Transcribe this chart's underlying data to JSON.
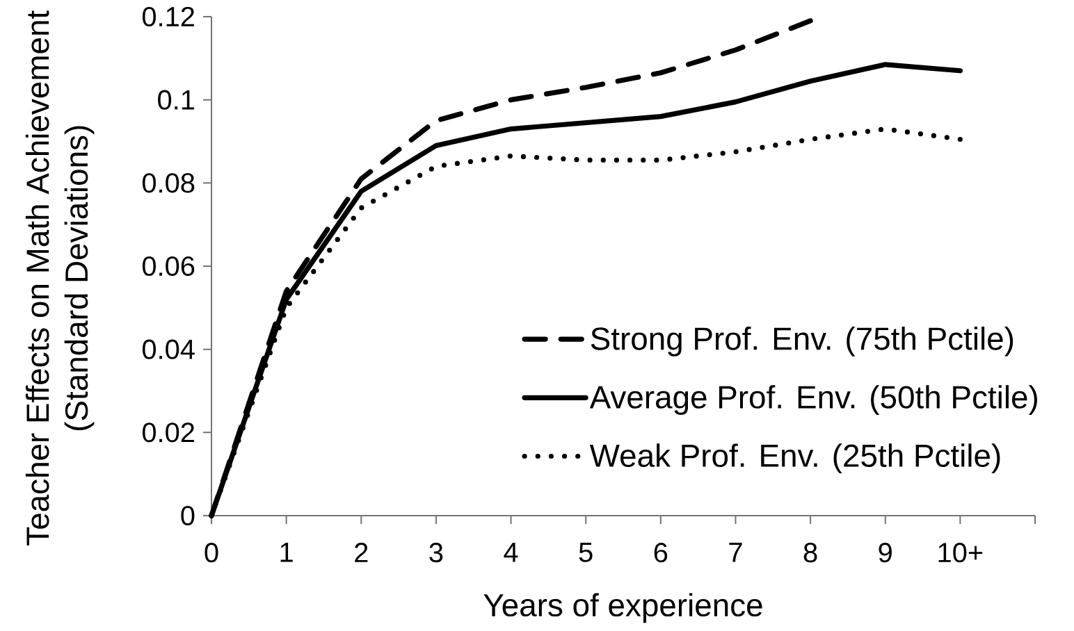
{
  "chart_data": {
    "type": "line",
    "xlabel": "Years of experience",
    "ylabel": "Teacher Effects on Math Achievement (Standard Deviations)",
    "categories": [
      "0",
      "1",
      "2",
      "3",
      "4",
      "5",
      "6",
      "7",
      "8",
      "9",
      "10+",
      null
    ],
    "ylim": [
      0,
      0.12
    ],
    "yticks": [
      0,
      0.02,
      0.04,
      0.06,
      0.08,
      0.1,
      0.12
    ],
    "legend": "bottom right",
    "marker": "none",
    "series": [
      {
        "name": "Strong Prof. Env. (75th Pctile)",
        "color": "#000000",
        "line_style": "dashed",
        "values": [
          0,
          0.054,
          0.081,
          0.095,
          0.1,
          0.103,
          0.1065,
          0.112,
          0.119,
          null,
          null,
          null
        ]
      },
      {
        "name": "Average Prof. Env. (50th Pctile)",
        "color": "#000000",
        "line_style": "solid",
        "values": [
          0,
          0.052,
          0.078,
          0.089,
          0.093,
          0.0945,
          0.096,
          0.0995,
          0.1045,
          0.1085,
          0.107,
          null
        ]
      },
      {
        "name": "Weak Prof. Env. (25th Pctile)",
        "color": "#000000",
        "line_style": "dotted",
        "values": [
          0,
          0.05,
          0.074,
          0.084,
          0.0865,
          0.0855,
          0.0855,
          0.0875,
          0.0905,
          0.093,
          0.0905,
          null
        ]
      }
    ]
  }
}
